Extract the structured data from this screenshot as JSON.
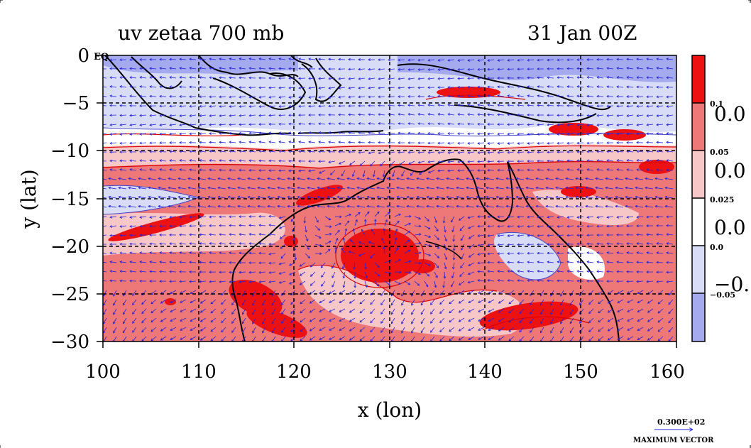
{
  "header": {
    "title": "uv zetaa 700 mb",
    "datetime": "31 Jan 00Z"
  },
  "map": {
    "region_label": "EQ"
  },
  "chart_data": {
    "type": "heatmap",
    "xlabel": "x (lon)",
    "ylabel": "y (lat)",
    "xlim": [
      100,
      160
    ],
    "ylim": [
      -30,
      0
    ],
    "x_ticks": [
      "100",
      "110",
      "120",
      "130",
      "140",
      "150",
      "160"
    ],
    "y_ticks": [
      "0",
      "−5",
      "−10",
      "−15",
      "−20",
      "−25",
      "−30"
    ],
    "grid": true,
    "colorbar": {
      "levels": [
        "0.1",
        "0.05",
        "0.025",
        "0.0",
        "−0.05"
      ],
      "big_labels": [
        "0.0",
        "0.0",
        "0.0",
        "−0."
      ],
      "colors": [
        "#ee1111",
        "#ee7777",
        "#f7c6c6",
        "#ffffff",
        "#d8dcf6",
        "#a5aaee"
      ]
    },
    "vector_key": {
      "magnitude": "0.300E+02",
      "label": "MAXIMUM VECTOR"
    },
    "colors": {
      "strong_pos": "#ee1111",
      "mid_pos": "#ee7777",
      "weak_pos": "#f7c6c6",
      "weak_neg": "#d8dcf6",
      "mid_neg": "#a5aaee",
      "vector": "#2222dd",
      "coast": "#000000"
    }
  }
}
